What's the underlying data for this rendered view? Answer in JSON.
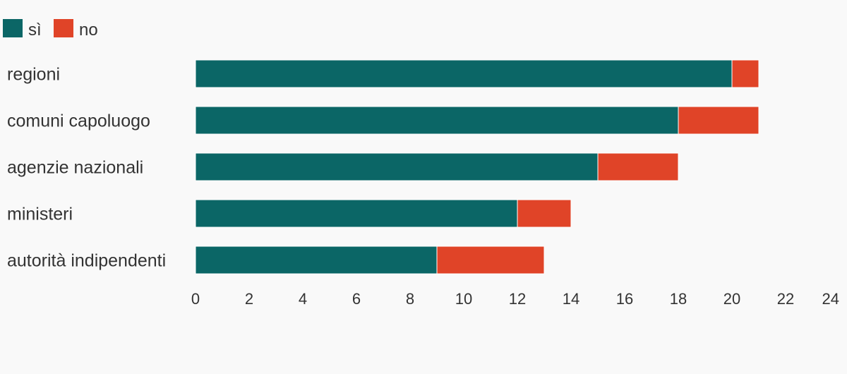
{
  "chart_data": {
    "type": "bar",
    "orientation": "horizontal",
    "stacked": true,
    "categories": [
      "regioni",
      "comuni capoluogo",
      "agenzie nazionali",
      "ministeri",
      "autorità indipendenti"
    ],
    "series": [
      {
        "name": "sì",
        "color": "#0b6666",
        "values": [
          20,
          18,
          15,
          12,
          9
        ]
      },
      {
        "name": "no",
        "color": "#e04428",
        "values": [
          1,
          3,
          3,
          2,
          4
        ]
      }
    ],
    "x_ticks": [
      0,
      2,
      4,
      6,
      8,
      10,
      12,
      14,
      16,
      18,
      20,
      22,
      24
    ],
    "xlim": [
      0,
      24
    ],
    "grid": false,
    "legend": "top-left"
  }
}
